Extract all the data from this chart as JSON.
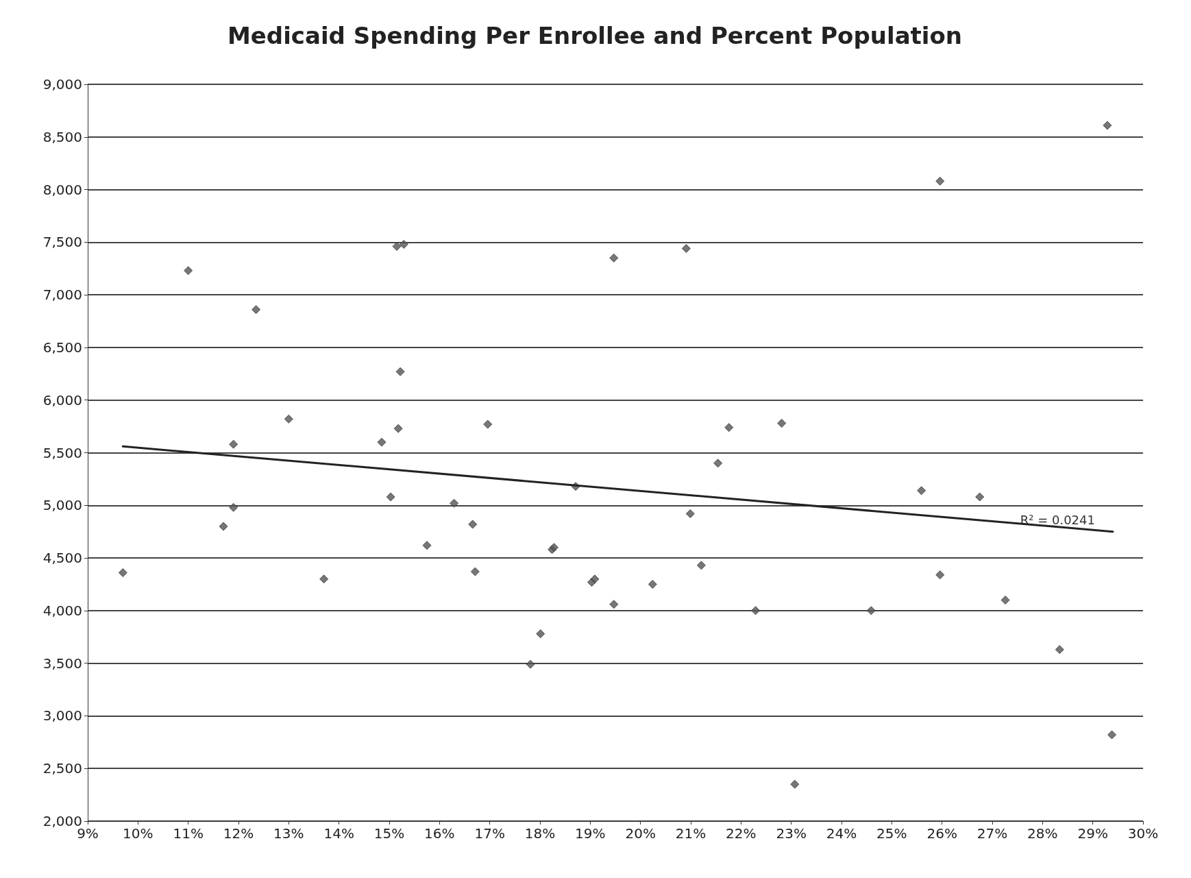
{
  "chart_data": {
    "type": "scatter",
    "title": "Medicaid Spending Per Enrollee and Percent Population",
    "xlim": [
      9,
      30
    ],
    "xticks": [
      {
        "value": 9,
        "label": "9%"
      },
      {
        "value": 10,
        "label": "10%"
      },
      {
        "value": 11,
        "label": "11%"
      },
      {
        "value": 12,
        "label": "12%"
      },
      {
        "value": 13,
        "label": "13%"
      },
      {
        "value": 14,
        "label": "14%"
      },
      {
        "value": 15,
        "label": "15%"
      },
      {
        "value": 16,
        "label": "16%"
      },
      {
        "value": 17,
        "label": "17%"
      },
      {
        "value": 18,
        "label": "18%"
      },
      {
        "value": 19,
        "label": "19%"
      },
      {
        "value": 20,
        "label": "20%"
      },
      {
        "value": 21,
        "label": "21%"
      },
      {
        "value": 22,
        "label": "22%"
      },
      {
        "value": 23,
        "label": "23%"
      },
      {
        "value": 24,
        "label": "24%"
      },
      {
        "value": 25,
        "label": "25%"
      },
      {
        "value": 26,
        "label": "26%"
      },
      {
        "value": 27,
        "label": "27%"
      },
      {
        "value": 28,
        "label": "28%"
      },
      {
        "value": 29,
        "label": "29%"
      },
      {
        "value": 30,
        "label": "30%"
      }
    ],
    "ylim": [
      2000,
      9000
    ],
    "yticks": [
      {
        "value": 2000,
        "label": "2,000"
      },
      {
        "value": 2500,
        "label": "2,500"
      },
      {
        "value": 3000,
        "label": "3,000"
      },
      {
        "value": 3500,
        "label": "3,500"
      },
      {
        "value": 4000,
        "label": "4,000"
      },
      {
        "value": 4500,
        "label": "4,500"
      },
      {
        "value": 5000,
        "label": "5,000"
      },
      {
        "value": 5500,
        "label": "5,500"
      },
      {
        "value": 6000,
        "label": "6,000"
      },
      {
        "value": 6500,
        "label": "6,500"
      },
      {
        "value": 7000,
        "label": "7,000"
      },
      {
        "value": 7500,
        "label": "7,500"
      },
      {
        "value": 8000,
        "label": "8,000"
      },
      {
        "value": 8500,
        "label": "8,500"
      },
      {
        "value": 9000,
        "label": "9,000"
      }
    ],
    "grid": "y",
    "marker": "diamond",
    "series": [
      {
        "type": "scatter",
        "color": "#555555",
        "x": [
          9.7,
          11.0,
          11.7,
          11.9,
          11.9,
          12.35,
          13.0,
          13.7,
          14.85,
          15.03,
          15.15,
          15.29,
          15.18,
          15.22,
          15.75,
          16.29,
          16.66,
          16.71,
          16.96,
          17.81,
          18.01,
          18.24,
          18.28,
          18.71,
          19.03,
          19.09,
          19.47,
          19.47,
          20.24,
          20.91,
          20.99,
          21.21,
          21.54,
          21.76,
          22.29,
          22.81,
          23.07,
          24.59,
          25.59,
          25.96,
          25.96,
          26.75,
          27.26,
          28.34,
          29.29,
          29.38
        ],
        "values": [
          4360,
          7230,
          4800,
          5580,
          4980,
          6860,
          5820,
          4300,
          5600,
          5080,
          7460,
          7480,
          5730,
          6270,
          4620,
          5020,
          4820,
          4370,
          5770,
          3490,
          3780,
          4580,
          4600,
          5180,
          4270,
          4300,
          7350,
          4060,
          4250,
          7440,
          4920,
          4430,
          5400,
          5740,
          4000,
          5780,
          2350,
          4000,
          5140,
          8080,
          4340,
          5080,
          4100,
          3630,
          8610,
          2820
        ]
      },
      {
        "type": "line",
        "color": "#222222",
        "marker": "none",
        "line_style": "solid",
        "x": [
          9.7,
          29.4
        ],
        "values": [
          5560,
          4750
        ]
      }
    ],
    "annotations": [
      {
        "text": "R² = 0.0241",
        "x": 28.3,
        "y": 4780
      }
    ]
  }
}
